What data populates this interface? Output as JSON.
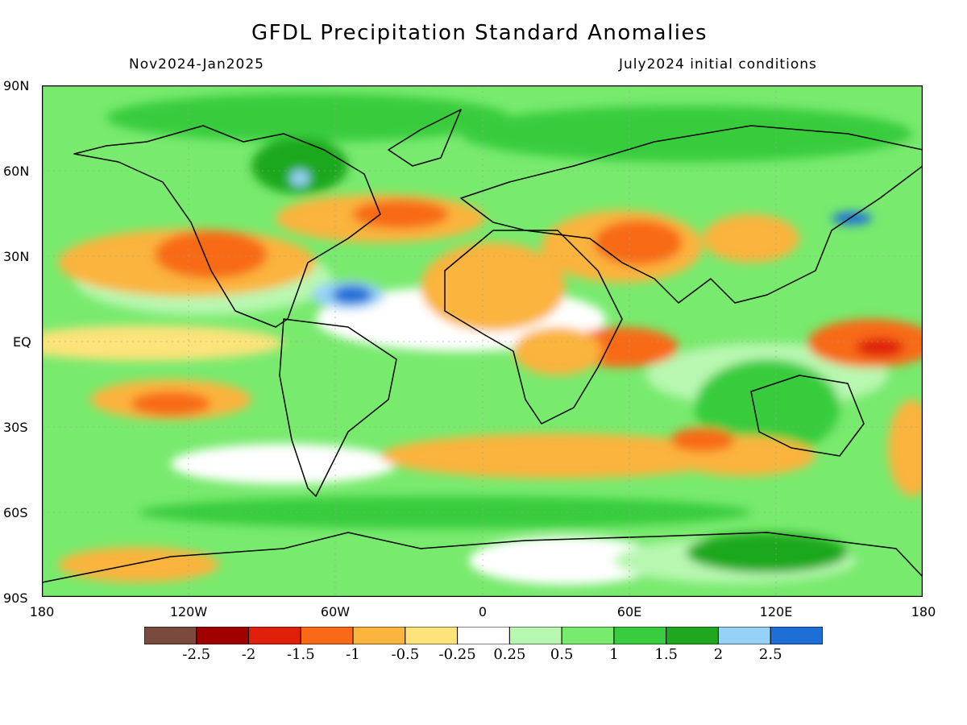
{
  "header": {
    "title": "GFDL Precipitation Standard Anomalies",
    "period": "Nov2024-Jan2025",
    "init": "July2024 initial conditions"
  },
  "axes": {
    "lat_labels": [
      "90N",
      "60N",
      "30N",
      "EQ",
      "30S",
      "60S",
      "90S"
    ],
    "lon_labels": [
      "180",
      "120W",
      "60W",
      "0",
      "60E",
      "120E",
      "180"
    ]
  },
  "colorbar": {
    "colors": [
      "#7a4a3e",
      "#a00000",
      "#e0200a",
      "#f86a18",
      "#fbb43c",
      "#fce37a",
      "#ffffff",
      "#b8f7b0",
      "#78ea6e",
      "#38cc3e",
      "#1fa81f",
      "#96d2f8",
      "#1e6ed8"
    ],
    "labels": [
      "-2.5",
      "-2",
      "-1.5",
      "-1",
      "-0.5",
      "-0.25",
      "0.25",
      "0.5",
      "1",
      "1.5",
      "2",
      "2.5"
    ]
  },
  "map": {
    "type": "global precipitation standard anomaly map",
    "extent": {
      "lon": [
        -180,
        180
      ],
      "lat": [
        -90,
        90
      ]
    },
    "coastlines": true
  }
}
